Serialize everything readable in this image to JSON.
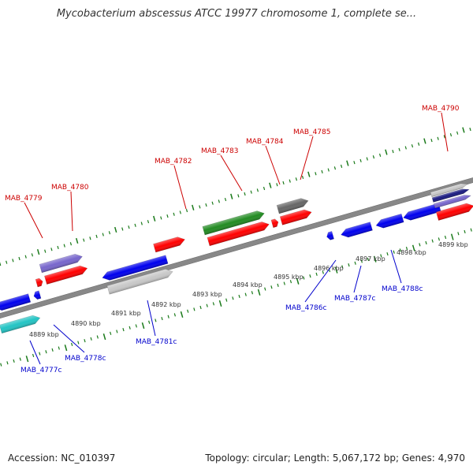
{
  "title": "Mycobacterium abscessus ATCC 19977 chromosome 1, complete se...",
  "footer": {
    "accession": "Accession: NC_010397",
    "summary": "Topology: circular; Length: 5,067,172 bp; Genes: 4,970"
  },
  "ticks": [
    "4889 kbp",
    "4890 kbp",
    "4891 kbp",
    "4892 kbp",
    "4893 kbp",
    "4894 kbp",
    "4895 kbp",
    "4896 kbp",
    "4897 kbp",
    "4898 kbp",
    "4899 kbp"
  ],
  "labels": {
    "forward": [
      "MAB_4779",
      "MAB_4780",
      "MAB_4782",
      "MAB_4783",
      "MAB_4784",
      "MAB_4785",
      "MAB_4790"
    ],
    "reverse": [
      "MAB_4777c",
      "MAB_4778c",
      "MAB_4781c",
      "MAB_4786c",
      "MAB_4787c",
      "MAB_4788c"
    ]
  },
  "colors": {
    "forward_label": "#cc0000",
    "reverse_label": "#0000cc",
    "tick_mark": "#1a7a1a",
    "backbone": "#888888",
    "cds_forward": "#ff0000",
    "cds_reverse": "#0000ee",
    "gene_green": "#228b22",
    "gene_purple": "#7766cc",
    "gene_cyan": "#22c4c4",
    "gene_grey": "#666666",
    "gene_light_grey": "#c8c8c8"
  }
}
